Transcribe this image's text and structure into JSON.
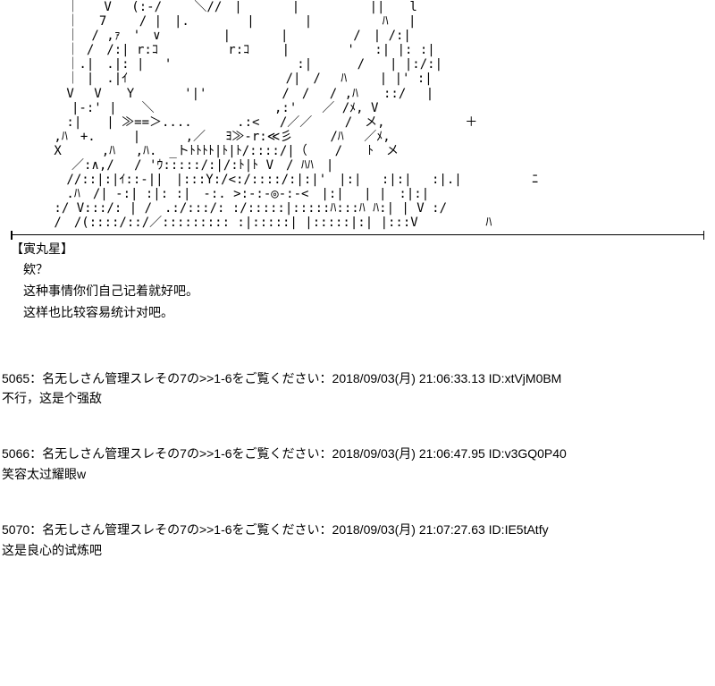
{
  "ascii_art": {
    "font_family": "MS PGothic",
    "color": "#000000",
    "background": "#ffffff",
    "lines": [
      "　　　　 ｜　　V　 (:-/　　 ＼//　|　　　　|　　　　　 ||　　l",
      "　　　　 ｜　 7　　 / |　|.　　　　 |　　　　|　　　　　 ﾊ　 |",
      "　　　　 ｜　/ ,ｧ　'　∨　　　　　|　　　　|　　　 　 /　| /:|",
      "　　　　 ｜ /　/:| r:ｺ　　　　　 r:ｺ　　 |　　　 　'　 :| |: :|",
      "　　　　 ｜.|　.|: |　 '　　　　　　　　　　:|　　　 /　　| |:/:|",
      "　　　　 ｜ |　.|ｲ　　　　　　　　　　　　 /|　/　 ﾊ　　 | |' :|",
      "　　　　 V　 V　　Y　　　　'|'　　　　　　/　/　 / ,ﾊ　　::/　 |",
      "　　　　　|-:' |　　＼　　 　　　　　　　,:'　　／ /ﾒ, V",
      "　　　　 :|　　| ≫==＞....　　　 .:<　 /／／　　 /　メ,　 　 　 　 ＋",
      "　　　 ,ﾊ　+.　　　|　　　 ,／　 ﾖ≫-r:≪彡　　　/ﾊ　 ／ﾒ,",
      "　　　 X　 　 ,ﾊ　 ,ﾊ.　_トﾄﾄﾄﾄ|ﾄ|ﾄ/::::/|（ 　 /　　ﾄ　メ",
      "　　　　　／:∧,/　 / 'ｳ:::::/:|/:ﾄ|ﾄ V　/ ﾊﾊ　|",
      "　　　　 //::|:|ｲ::-||　|:::Y:/<:/::::/:|:|'　|:|　 :|:|　 :|.|　　　　　 ﾆ",
      "　　　　 .ﾊ　/| -:| :|: :|　-:. >:-:-◎-:-<　|:|　 | |　:|:|",
      "　　　 :/ V:::/: | /　.:/:::/: :/:::::|:::::ﾊ:::ﾊ ﾊ:| | V :/",
      "　　　 /　/(::::/::/／::::::::: :|:::::| |:::::|:| |:::V 　 　 　 ﾊ"
    ]
  },
  "divider": {
    "color": "#000000",
    "width": 1.5
  },
  "dialogue": {
    "speaker": "【寅丸星】",
    "lines": [
      "欸？",
      "这种事情你们自己记着就好吧。",
      "这样也比较容易统计对吧。"
    ]
  },
  "posts": [
    {
      "number": "5065",
      "name": "名无しさん管理スレその7の>>1-6をご覧ください",
      "date": "2018/09/03(月) 21:06:33.13",
      "id": "xtVjM0BM",
      "body": "不行，这是个强敌"
    },
    {
      "number": "5066",
      "name": "名无しさん管理スレその7の>>1-6をご覧ください",
      "date": "2018/09/03(月) 21:06:47.95",
      "id": "v3GQ0P40",
      "body": "笑容太过耀眼w"
    },
    {
      "number": "5070",
      "name": "名无しさん管理スレその7の>>1-6をご覧ください",
      "date": "2018/09/03(月) 21:07:27.63",
      "id": "IE5tAtfy",
      "body": "这是良心的试炼吧"
    }
  ]
}
